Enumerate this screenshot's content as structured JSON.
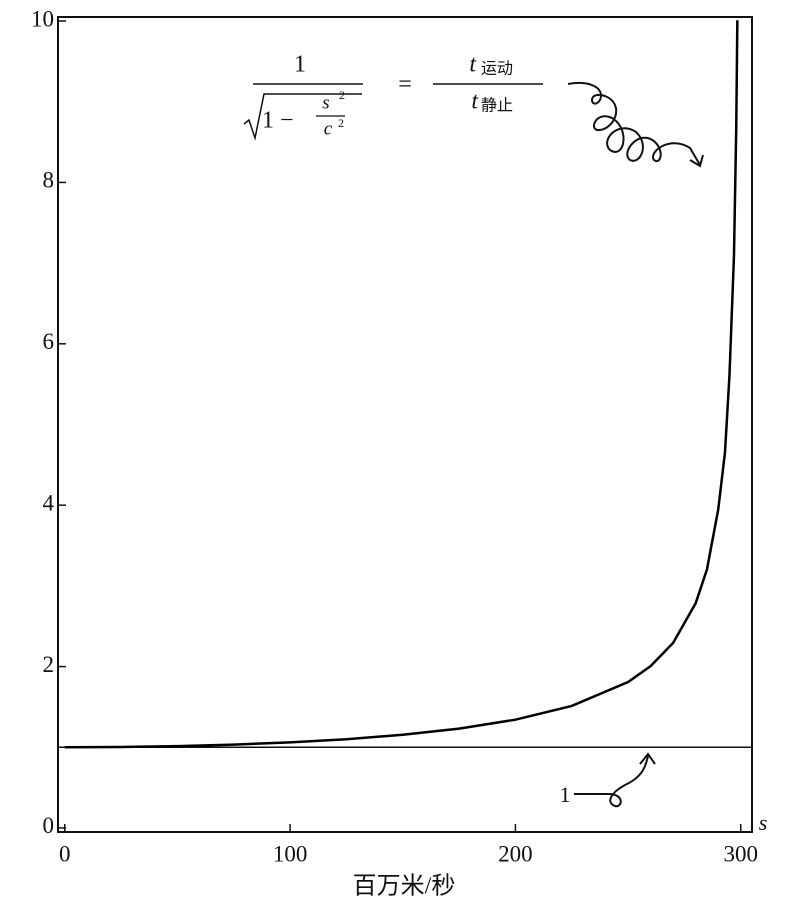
{
  "chart_data": {
    "type": "line",
    "x_label": "百万米/秒",
    "x_symbol": "s",
    "formula": {
      "numerator": "1",
      "radicand": "1 −",
      "s": "s",
      "s_exp": "2",
      "c": "c",
      "c_exp": "2",
      "equals": "=",
      "t_top": "t",
      "t_top_sub": "运动",
      "t_bottom": "t",
      "t_bottom_sub": "静止"
    },
    "hline": 1,
    "hline_label": "1",
    "x": [
      0,
      25,
      50,
      75,
      100,
      125,
      150,
      175,
      200,
      225,
      250,
      260,
      270,
      280,
      285,
      290,
      293,
      295,
      297,
      298,
      298.5
    ],
    "series": [
      {
        "color": "#000000",
        "values": [
          1,
          1.003,
          1.014,
          1.033,
          1.061,
          1.1,
          1.155,
          1.231,
          1.342,
          1.512,
          1.809,
          2.005,
          2.294,
          2.785,
          3.203,
          3.945,
          4.65,
          5.61,
          7.09,
          8.67,
          10.01
        ]
      }
    ],
    "xlim": [
      -3,
      305
    ],
    "ylim": [
      -0.05,
      10.05
    ],
    "xticks": [
      0,
      100,
      200,
      300
    ],
    "yticks": [
      0,
      2,
      4,
      6,
      8,
      10
    ]
  }
}
